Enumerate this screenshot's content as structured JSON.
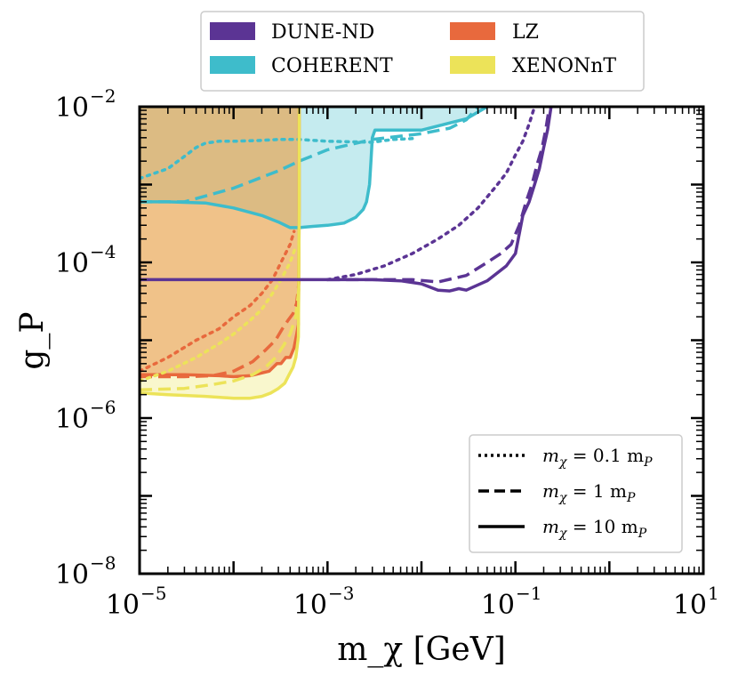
{
  "chart_data": {
    "type": "line",
    "xlabel": "m_χ [GeV]",
    "ylabel": "g_P",
    "xscale": "log",
    "yscale": "log",
    "xlim": [
      1e-05,
      10
    ],
    "ylim": [
      1e-08,
      0.01
    ],
    "x_ticks": [
      {
        "value": 1e-05,
        "base": "10",
        "exp": "−5"
      },
      {
        "value": 0.001,
        "base": "10",
        "exp": "−3"
      },
      {
        "value": 0.1,
        "base": "10",
        "exp": "−1"
      },
      {
        "value": 10,
        "base": "10",
        "exp": "1"
      }
    ],
    "y_ticks": [
      {
        "value": 1e-08,
        "base": "10",
        "exp": "−8"
      },
      {
        "value": 1e-06,
        "base": "10",
        "exp": "−6"
      },
      {
        "value": 0.0001,
        "base": "10",
        "exp": "−4"
      },
      {
        "value": 0.01,
        "base": "10",
        "exp": "−2"
      }
    ],
    "legend_experiments": [
      {
        "name": "DUNE-ND",
        "color": "#5b3494"
      },
      {
        "name": "COHERENT",
        "color": "#3ebccb"
      },
      {
        "name": "LZ",
        "color": "#e8693d"
      },
      {
        "name": "XENONnT",
        "color": "#ece359"
      }
    ],
    "legend_styles": [
      {
        "style": "dotted",
        "label_main": "m",
        "label_sub": "χ",
        "label_rest": " = 0.1 m",
        "label_sub2": "P"
      },
      {
        "style": "dashed",
        "label_main": "m",
        "label_sub": "χ",
        "label_rest": " = 1 m",
        "label_sub2": "P"
      },
      {
        "style": "solid",
        "label_main": "m",
        "label_sub": "χ",
        "label_rest": " = 10 m",
        "label_sub2": "P"
      }
    ],
    "series": [
      {
        "name": "COHERENT",
        "style": "solid",
        "color": "#3ebccb",
        "fill": true,
        "x": [
          1e-05,
          2e-05,
          5e-05,
          0.0001,
          0.0002,
          0.0003,
          0.0004,
          0.0005,
          0.0007,
          0.001,
          0.0015,
          0.002,
          0.0024,
          0.0026,
          0.0028,
          0.0029,
          0.003,
          0.0032,
          0.01,
          0.03,
          0.05
        ],
        "y": [
          0.0006,
          0.0006,
          0.00058,
          0.0005,
          0.0004,
          0.00033,
          0.00028,
          0.00028,
          0.00029,
          0.0003,
          0.00032,
          0.00038,
          0.00048,
          0.0006,
          0.001,
          0.002,
          0.004,
          0.005,
          0.005,
          0.007,
          0.01
        ]
      },
      {
        "name": "COHERENT",
        "style": "dashed",
        "color": "#3ebccb",
        "fill": false,
        "x": [
          1e-05,
          3e-05,
          0.0001,
          0.0003,
          0.0005,
          0.001,
          0.003,
          0.01,
          0.02,
          0.03,
          0.04
        ],
        "y": [
          0.0006,
          0.0006,
          0.0009,
          0.0015,
          0.002,
          0.0028,
          0.0038,
          0.0045,
          0.0053,
          0.0068,
          0.01
        ]
      },
      {
        "name": "COHERENT",
        "style": "dotted",
        "color": "#3ebccb",
        "fill": false,
        "x": [
          1e-05,
          2e-05,
          3e-05,
          4e-05,
          5e-05,
          7e-05,
          0.0001,
          0.0002,
          0.0003,
          0.0005,
          0.001,
          0.003,
          0.005,
          0.008
        ],
        "y": [
          0.0012,
          0.0016,
          0.0023,
          0.003,
          0.0034,
          0.0036,
          0.0036,
          0.0037,
          0.0038,
          0.0038,
          0.0036,
          0.0035,
          0.0038,
          0.0039
        ]
      },
      {
        "name": "LZ",
        "style": "solid",
        "color": "#e8693d",
        "fill": true,
        "x": [
          1e-05,
          3e-05,
          7e-05,
          0.0001,
          0.00015,
          0.00024,
          0.00029,
          0.00032,
          0.00036,
          0.0004,
          0.00044,
          0.00047,
          0.00049,
          0.0005,
          0.0005
        ],
        "y": [
          3.6e-06,
          3.6e-06,
          3.5e-06,
          3.4e-06,
          3.5e-06,
          4e-06,
          5e-06,
          5e-06,
          6e-06,
          6e-06,
          8e-06,
          1.2e-05,
          1.6e-05,
          0.0005,
          0.01
        ]
      },
      {
        "name": "LZ",
        "style": "dashed",
        "color": "#e8693d",
        "fill": false,
        "x": [
          1e-05,
          3e-05,
          6e-05,
          0.0001,
          0.00016,
          0.00022,
          0.00028,
          0.00033,
          0.00038,
          0.00043,
          0.00047,
          0.0005
        ],
        "y": [
          3.4e-06,
          3.4e-06,
          3.5e-06,
          4e-06,
          5.3e-06,
          7.5e-06,
          1e-05,
          1.4e-05,
          1.8e-05,
          2.2e-05,
          3e-05,
          6e-05
        ]
      },
      {
        "name": "LZ",
        "style": "dotted",
        "color": "#e8693d",
        "fill": false,
        "x": [
          1e-05,
          2e-05,
          4e-05,
          7e-05,
          0.0001,
          0.00015,
          0.0002,
          0.00026,
          0.00032,
          0.0004,
          0.00044
        ],
        "y": [
          4e-06,
          6e-06,
          1e-05,
          1.4e-05,
          2e-05,
          2.8e-05,
          4e-05,
          6e-05,
          0.0001,
          0.00017,
          0.00025
        ]
      },
      {
        "name": "XENONnT",
        "style": "solid",
        "color": "#ece359",
        "fill": true,
        "x": [
          1e-05,
          2e-05,
          5e-05,
          0.0001,
          0.00015,
          0.0002,
          0.00025,
          0.0003,
          0.00035,
          0.00039,
          0.00043,
          0.00046,
          0.00049,
          0.0005,
          0.0005
        ],
        "y": [
          2.1e-06,
          2e-06,
          1.9e-06,
          1.8e-06,
          1.8e-06,
          1.9e-06,
          2.1e-06,
          2.4e-06,
          2.8e-06,
          3.6e-06,
          4.5e-06,
          6e-06,
          1.1e-05,
          0.0005,
          0.01
        ]
      },
      {
        "name": "XENONnT",
        "style": "dashed",
        "color": "#ece359",
        "fill": false,
        "x": [
          1e-05,
          3e-05,
          6e-05,
          0.0001,
          0.00016,
          0.00022,
          0.00028,
          0.00034,
          0.0004,
          0.00046,
          0.0005
        ],
        "y": [
          2.3e-06,
          2.4e-06,
          2.7e-06,
          3e-06,
          3.6e-06,
          4.5e-06,
          6e-06,
          8.5e-06,
          1.2e-05,
          2e-05,
          5e-05
        ]
      },
      {
        "name": "XENONnT",
        "style": "dotted",
        "color": "#ece359",
        "fill": false,
        "x": [
          1e-05,
          2e-05,
          4e-05,
          7e-05,
          0.0001,
          0.00015,
          0.0002,
          0.00026,
          0.00032,
          0.0004,
          0.00046
        ],
        "y": [
          3e-06,
          4e-06,
          6e-06,
          9e-06,
          1.2e-05,
          1.8e-05,
          2.5e-05,
          4e-05,
          6e-05,
          0.0001,
          0.00016
        ]
      },
      {
        "name": "DUNE-ND",
        "style": "solid",
        "color": "#5b3494",
        "fill": false,
        "x": [
          1e-05,
          0.0001,
          0.0005,
          0.001,
          0.003,
          0.006,
          0.01,
          0.015,
          0.02,
          0.025,
          0.03,
          0.05,
          0.08,
          0.1,
          0.12,
          0.14,
          0.16,
          0.18,
          0.2,
          0.22,
          0.24
        ],
        "y": [
          6e-05,
          6e-05,
          6e-05,
          6e-05,
          6e-05,
          5.8e-05,
          5.3e-05,
          4.4e-05,
          4.3e-05,
          4.6e-05,
          4.4e-05,
          5.8e-05,
          9e-05,
          0.00013,
          0.0004,
          0.0006,
          0.001,
          0.0016,
          0.003,
          0.005,
          0.01
        ]
      },
      {
        "name": "DUNE-ND",
        "style": "dashed",
        "color": "#5b3494",
        "fill": false,
        "x": [
          0.001,
          0.003,
          0.008,
          0.015,
          0.03,
          0.05,
          0.07,
          0.09,
          0.11,
          0.13,
          0.15,
          0.17,
          0.19,
          0.21,
          0.23
        ],
        "y": [
          6e-05,
          6e-05,
          6e-05,
          5.6e-05,
          6.8e-05,
          0.0001,
          0.00013,
          0.00017,
          0.0003,
          0.0006,
          0.001,
          0.0018,
          0.0028,
          0.005,
          0.01
        ]
      },
      {
        "name": "DUNE-ND",
        "style": "dotted",
        "color": "#5b3494",
        "fill": false,
        "x": [
          0.001,
          0.002,
          0.004,
          0.008,
          0.015,
          0.025,
          0.04,
          0.06,
          0.08,
          0.1,
          0.12,
          0.14,
          0.16
        ],
        "y": [
          6e-05,
          7e-05,
          9e-05,
          0.00013,
          0.0002,
          0.0003,
          0.0005,
          0.0009,
          0.0014,
          0.0024,
          0.0036,
          0.006,
          0.01
        ]
      }
    ]
  }
}
